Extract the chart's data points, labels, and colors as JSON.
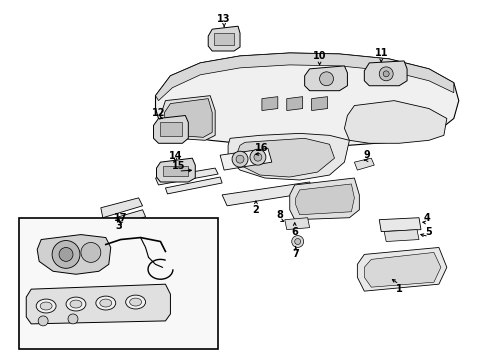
{
  "background_color": "#ffffff",
  "line_color": "#000000",
  "text_color": "#000000",
  "fig_w": 4.9,
  "fig_h": 3.6,
  "dpi": 100
}
